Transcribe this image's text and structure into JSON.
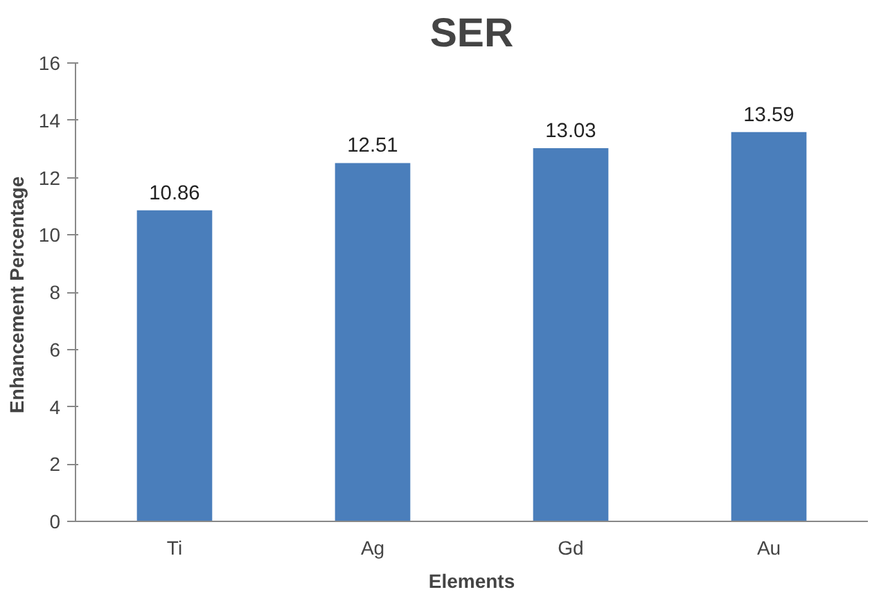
{
  "chart_data": {
    "type": "bar",
    "title": "SER",
    "xlabel": "Elements",
    "ylabel": "Enhancement  Percentage",
    "categories": [
      "Ti",
      "Ag",
      "Gd",
      "Au"
    ],
    "values": [
      10.86,
      12.51,
      13.03,
      13.59
    ],
    "color": "#4a7ebb",
    "ylim": [
      0,
      16
    ],
    "yticks": [
      0,
      2,
      4,
      6,
      8,
      10,
      12,
      14,
      16
    ],
    "data_labels": true,
    "grid": false
  }
}
